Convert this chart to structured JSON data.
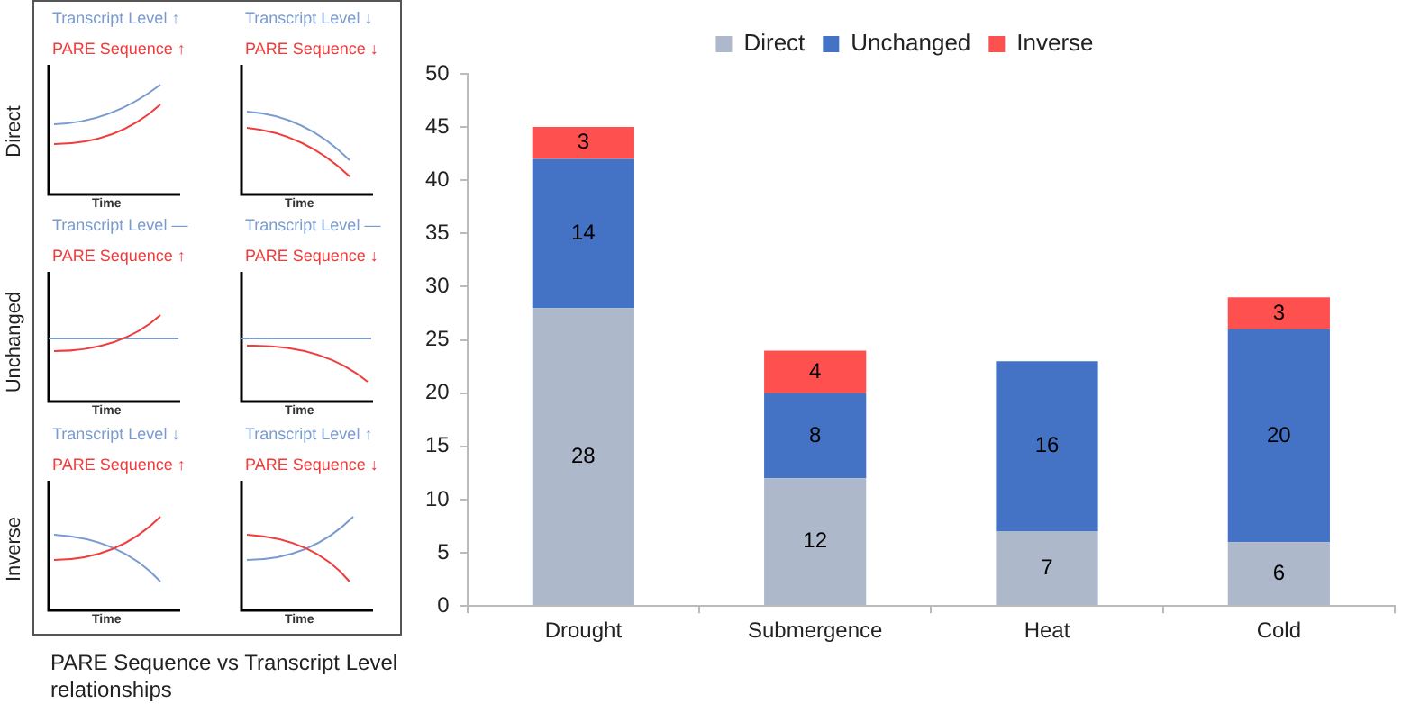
{
  "chart_data": [
    {
      "type": "other",
      "annotations": [
        "PARE Sequence vs Transcript Level relationships",
        "Direct",
        "Unchanged",
        "Inverse",
        "Transcript Level ↑",
        "PARE Sequence ↑",
        "Time",
        "Transcript Level ↓",
        "PARE Sequence ↓",
        "Time",
        "Transcript Level —",
        "PARE Sequence ↑",
        "Time",
        "Transcript Level —",
        "PARE Sequence ↓",
        "Time",
        "Transcript Level ↓",
        "PARE Sequence ↑",
        "Time",
        "Transcript Level ↑",
        "PARE Sequence ↓",
        "Time"
      ]
    },
    {
      "type": "bar",
      "stacked": true,
      "categories": [
        "Drought",
        "Submergence",
        "Heat",
        "Cold"
      ],
      "series": [
        {
          "name": "Direct",
          "color": "#adb9ca",
          "values": [
            28,
            12,
            7,
            6
          ]
        },
        {
          "name": "Unchanged",
          "color": "#4472c4",
          "values": [
            14,
            8,
            16,
            20
          ]
        },
        {
          "name": "Inverse",
          "color": "#ff5050",
          "values": [
            3,
            4,
            null,
            3
          ]
        }
      ],
      "ylim": [
        0,
        50
      ],
      "yticks": [
        0,
        5,
        10,
        15,
        20,
        25,
        30,
        35,
        40,
        45,
        50
      ],
      "grid": false,
      "legend": "top",
      "data_labels": true
    }
  ]
}
